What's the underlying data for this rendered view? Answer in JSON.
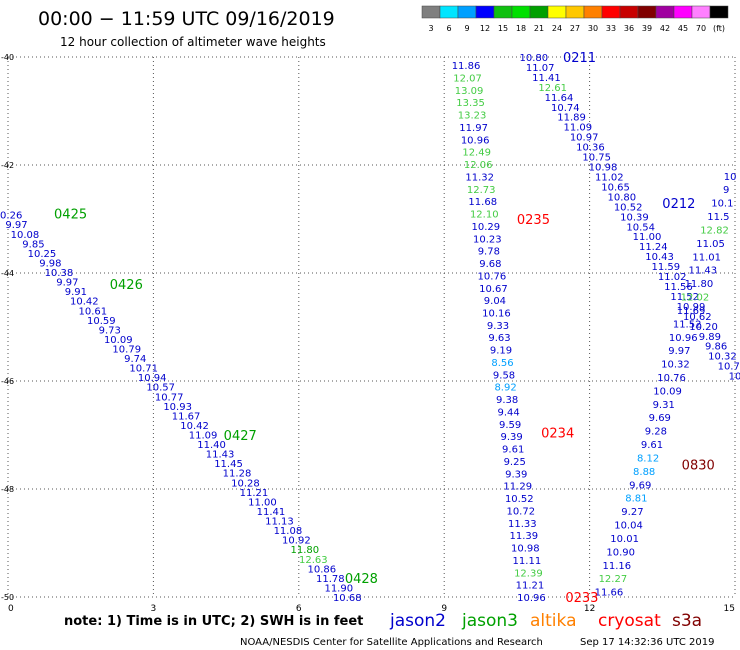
{
  "header": {
    "title": "00:00 − 11:59 UTC 09/16/2019",
    "subtitle": "12 hour collection of altimeter wave heights"
  },
  "legend": {
    "colors": [
      "#7f7f7f",
      "#00e5ff",
      "#00a0ff",
      "#0000ff",
      "#10c010",
      "#00e000",
      "#00a000",
      "#ffff00",
      "#ffc800",
      "#ff8000",
      "#ff0000",
      "#c80000",
      "#800000",
      "#a000a0",
      "#ff00ff",
      "#ff80ff",
      "#000000"
    ],
    "labels": [
      "3",
      "6",
      "9",
      "12",
      "15",
      "18",
      "21",
      "24",
      "27",
      "30",
      "33",
      "36",
      "39",
      "42",
      "45",
      "70",
      "(ft)"
    ]
  },
  "footer": {
    "note": "note:  1) Time is in UTC;  2) SWH is in feet",
    "credit": "NOAA/NESDIS Center for Satellite Applications and Research",
    "timestamp": "Sep 17 14:32:36 UTC 2019",
    "satellites": [
      {
        "name": "jason2",
        "color": "#0000cc"
      },
      {
        "name": "jason3",
        "color": "#00a000"
      },
      {
        "name": "altika",
        "color": "#ff8000"
      },
      {
        "name": "cryosat",
        "color": "#ff0000"
      },
      {
        "name": "s3a",
        "color": "#800000"
      }
    ]
  },
  "chart_data": {
    "type": "scatter",
    "title": "",
    "xlim": [
      0,
      15
    ],
    "ylim": [
      -50,
      -40
    ],
    "x_ticks": [
      "0",
      "3",
      "6",
      "9",
      "12",
      "15"
    ],
    "y_ticks": [
      "-40",
      "-42",
      "-44",
      "-46",
      "-48",
      "-50"
    ],
    "grid": true,
    "passes": [
      {
        "label": "0425",
        "sat": "jason3",
        "color": "#00a000",
        "x": 0.95,
        "y": -42.9
      },
      {
        "label": "0426",
        "sat": "jason3",
        "color": "#00a000",
        "x": 2.1,
        "y": -44.2
      },
      {
        "label": "0427",
        "sat": "jason3",
        "color": "#00a000",
        "x": 4.45,
        "y": -47.0
      },
      {
        "label": "0428",
        "sat": "jason3",
        "color": "#00a000",
        "x": 6.95,
        "y": -49.65
      },
      {
        "label": "0235",
        "sat": "cryosat",
        "color": "#ff0000",
        "x": 10.5,
        "y": -43.0
      },
      {
        "label": "0234",
        "sat": "cryosat",
        "color": "#ff0000",
        "x": 11.0,
        "y": -46.95
      },
      {
        "label": "0233",
        "sat": "cryosat",
        "color": "#ff0000",
        "x": 11.5,
        "y": -50.0
      },
      {
        "label": "0211",
        "sat": "jason2",
        "color": "#0000cc",
        "x": 11.45,
        "y": -40.0
      },
      {
        "label": "0212",
        "sat": "jason2",
        "color": "#0000cc",
        "x": 13.5,
        "y": -42.7
      },
      {
        "label": "0830",
        "sat": "s3a",
        "color": "#800000",
        "x": 13.9,
        "y": -47.55
      }
    ],
    "tracks": [
      {
        "name": "0425-0428",
        "x0": 0.0,
        "y0": -42.92,
        "x1": 7.0,
        "y1": -50.0,
        "values": [
          "10.26",
          "9.97",
          "10.08",
          "9.85",
          "10.25",
          "9.98",
          "10.38",
          "9.97",
          "9.91",
          "10.42",
          "10.61",
          "10.59",
          "9.73",
          "10.09",
          "10.79",
          "9.74",
          "10.71",
          "10.94",
          "10.57",
          "10.77",
          "10.93",
          "11.67",
          "10.42",
          "11.09",
          "11.40",
          "11.43",
          "11.45",
          "11.28",
          "10.28",
          "11.21",
          "11.00",
          "11.41",
          "11.13",
          "11.08",
          "10.92",
          "11.80",
          "12.63",
          "10.86",
          "11.78",
          "11.90",
          "10.68"
        ],
        "colors": {
          "11.80": "#00a000",
          "12.63": "#44cc44"
        }
      },
      {
        "name": "0235-0233",
        "x0": 9.45,
        "y0": -40.15,
        "x1": 10.8,
        "y1": -50.0,
        "values": [
          "11.86",
          "12.07",
          "13.09",
          "13.35",
          "13.23",
          "11.97",
          "10.96",
          "12.49",
          "12.06",
          "11.32",
          "12.73",
          "11.68",
          "12.10",
          "10.29",
          "10.23",
          "9.78",
          "9.68",
          "10.76",
          "10.67",
          "9.04",
          "10.16",
          "9.33",
          "9.63",
          "9.19",
          "8.56",
          "9.58",
          "8.92",
          "9.38",
          "9.44",
          "9.59",
          "9.39",
          "9.61",
          "9.25",
          "9.39",
          "11.29",
          "10.52",
          "10.72",
          "11.33",
          "11.39",
          "10.98",
          "11.11",
          "12.39",
          "11.21",
          "10.96"
        ],
        "colors": {
          "12.07": "#44cc44",
          "13.09": "#44cc44",
          "13.35": "#44cc44",
          "13.23": "#44cc44",
          "12.49": "#44cc44",
          "12.06": "#44cc44",
          "12.73": "#44cc44",
          "12.10": "#44cc44",
          "8.56": "#00a0ff",
          "8.92": "#00a0ff",
          "12.39": "#44cc44"
        }
      },
      {
        "name": "0211-0212",
        "x0": 10.85,
        "y0": -40.0,
        "x1": 15.0,
        "y1": -45.9,
        "values": [
          "10.80",
          "11.07",
          "11.41",
          "12.61",
          "11.64",
          "10.74",
          "11.89",
          "11.09",
          "10.97",
          "10.36",
          "10.75",
          "10.98",
          "11.02",
          "10.65",
          "10.80",
          "10.52",
          "10.39",
          "10.54",
          "11.00",
          "11.24",
          "10.43",
          "11.59",
          "11.02",
          "11.56",
          "11.52",
          "10.99",
          "10.62",
          "10.20",
          "9.89",
          "9.86",
          "10.32",
          "10.7",
          "10"
        ],
        "colors": {
          "12.61": "#44cc44"
        }
      },
      {
        "name": "0830",
        "x0": 14.9,
        "y0": -42.2,
        "x1": 12.4,
        "y1": -49.9,
        "values": [
          "10",
          "9",
          "10.1",
          "11.5",
          "12.82",
          "11.05",
          "11.01",
          "11.43",
          "11.80",
          "12.02",
          "11.69",
          "11.52",
          "10.96",
          "9.97",
          "10.32",
          "10.76",
          "10.09",
          "9.31",
          "9.69",
          "9.28",
          "9.61",
          "8.12",
          "8.88",
          "9.69",
          "8.81",
          "9.27",
          "10.04",
          "10.01",
          "10.90",
          "11.16",
          "12.27",
          "11.66"
        ],
        "colors": {
          "12.82": "#44cc44",
          "12.02": "#44cc44",
          "8.12": "#00a0ff",
          "8.88": "#00a0ff",
          "8.81": "#00a0ff",
          "12.27": "#44cc44"
        }
      }
    ]
  }
}
